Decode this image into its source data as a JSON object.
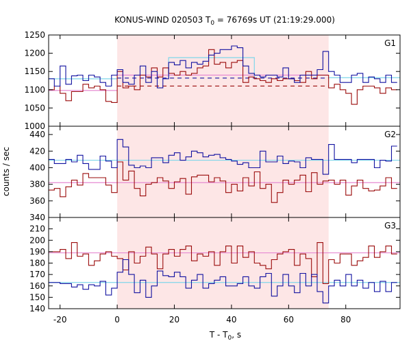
{
  "chart_data": {
    "type": "line",
    "title": "KONUS-WIND 020503 T",
    "title_sub": "0",
    "title_rest": " = 76769s UT (21:19:29.000)",
    "xlabel": "T - T",
    "xlabel_sub": "0",
    "xlabel_rest": ", s",
    "ylabel": "counts / sec",
    "xlim": [
      -24,
      99
    ],
    "x_ticks": [
      -20,
      0,
      20,
      40,
      60,
      80
    ],
    "x_tick_labels": [
      "-20",
      "0",
      "20",
      "40",
      "60",
      "80"
    ],
    "shaded_interval": [
      0,
      74
    ],
    "colors": {
      "shade": "#fde6e6",
      "blue": "#1010a0",
      "red": "#9a0a0a",
      "cyan": "#7fd6ea",
      "pink": "#e68ad2",
      "frame": "#000000"
    },
    "bin_edges": [
      -24,
      -22,
      -20,
      -18,
      -16,
      -14,
      -12,
      -10,
      -8,
      -6,
      -4,
      -2,
      0,
      2,
      4,
      6,
      8,
      10,
      12,
      14,
      16,
      18,
      20,
      22,
      24,
      26,
      28,
      30,
      32,
      34,
      36,
      38,
      40,
      42,
      44,
      46,
      48,
      50,
      52,
      54,
      56,
      58,
      60,
      62,
      64,
      66,
      68,
      70,
      72,
      74,
      76,
      78,
      80,
      82,
      84,
      86,
      88,
      90,
      92,
      94,
      96,
      98
    ],
    "panels": [
      {
        "label": "G1",
        "ylim": [
          1000,
          1250
        ],
        "y_ticks": [
          1000,
          1050,
          1100,
          1150,
          1200,
          1250
        ],
        "y_tick_labels": [
          "1000",
          "1050",
          "1100",
          "1150",
          "1200",
          "1250"
        ],
        "blue_values": [
          1130,
          1110,
          1165,
          1115,
          1138,
          1140,
          1125,
          1140,
          1135,
          1120,
          1110,
          1140,
          1155,
          1120,
          1115,
          1140,
          1165,
          1120,
          1150,
          1105,
          1130,
          1175,
          1168,
          1180,
          1160,
          1175,
          1170,
          1178,
          1195,
          1200,
          1210,
          1210,
          1220,
          1215,
          1165,
          1145,
          1140,
          1135,
          1140,
          1140,
          1135,
          1160,
          1130,
          1120,
          1140,
          1140,
          1140,
          1155,
          1205,
          1150,
          1140,
          1120,
          1120,
          1140,
          1145,
          1120,
          1135,
          1130,
          1120,
          1140,
          1120
        ],
        "red_values": [
          1100,
          1110,
          1090,
          1070,
          1095,
          1095,
          1115,
          1105,
          1110,
          1100,
          1068,
          1065,
          1150,
          1105,
          1110,
          1100,
          1140,
          1135,
          1160,
          1135,
          1160,
          1145,
          1140,
          1150,
          1140,
          1145,
          1160,
          1165,
          1210,
          1170,
          1175,
          1160,
          1175,
          1180,
          1120,
          1135,
          1130,
          1125,
          1120,
          1130,
          1125,
          1130,
          1130,
          1125,
          1120,
          1150,
          1130,
          1140,
          1140,
          1105,
          1115,
          1100,
          1090,
          1060,
          1100,
          1110,
          1110,
          1105,
          1090,
          1105,
          1100
        ],
        "blue_bg_left": 1130,
        "red_bg_left": 1098,
        "blue_bg_right": 1132,
        "red_bg_right": 1110,
        "pink_mid": 1140,
        "cyan_box": [
          18,
          48,
          1188
        ],
        "cyan_right": 1133
      },
      {
        "label": "G2",
        "ylim": [
          340,
          450
        ],
        "y_ticks": [
          340,
          360,
          380,
          400,
          420,
          440
        ],
        "y_tick_labels": [
          "340",
          "360",
          "380",
          "400",
          "420",
          "440"
        ],
        "blue_values": [
          410,
          405,
          405,
          410,
          407,
          415,
          405,
          398,
          398,
          414,
          408,
          400,
          434,
          425,
          403,
          400,
          402,
          400,
          412,
          412,
          406,
          415,
          418,
          409,
          413,
          420,
          418,
          413,
          415,
          416,
          412,
          410,
          408,
          404,
          406,
          400,
          400,
          420,
          407,
          407,
          414,
          405,
          408,
          407,
          400,
          412,
          410,
          410,
          392,
          428,
          410,
          410,
          410,
          406,
          410,
          410,
          410,
          400,
          409,
          408,
          426
        ],
        "red_values": [
          373,
          375,
          365,
          377,
          385,
          379,
          393,
          388,
          388,
          388,
          379,
          370,
          407,
          385,
          396,
          375,
          366,
          380,
          382,
          388,
          384,
          375,
          383,
          387,
          368,
          389,
          391,
          391,
          383,
          388,
          384,
          370,
          380,
          372,
          388,
          378,
          395,
          375,
          380,
          358,
          370,
          385,
          380,
          385,
          391,
          371,
          394,
          380,
          384,
          385,
          380,
          385,
          367,
          378,
          385,
          375,
          372,
          373,
          378,
          388,
          375
        ],
        "cyan_level": 409,
        "pink_level": 382
      },
      {
        "label": "G3",
        "ylim": [
          140,
          220
        ],
        "y_ticks": [
          140,
          150,
          160,
          170,
          180,
          190,
          200,
          210
        ],
        "y_tick_labels": [
          "140",
          "150",
          "160",
          "170",
          "180",
          "190",
          "200",
          "210"
        ],
        "blue_values": [
          163,
          163,
          162,
          162,
          159,
          161,
          157,
          161,
          160,
          164,
          152,
          158,
          172,
          183,
          170,
          154,
          165,
          150,
          160,
          173,
          169,
          168,
          172,
          168,
          158,
          165,
          170,
          158,
          162,
          165,
          168,
          160,
          160,
          162,
          168,
          160,
          158,
          168,
          171,
          151,
          160,
          170,
          160,
          154,
          171,
          160,
          170,
          155,
          145,
          160,
          165,
          160,
          170,
          160,
          165,
          158,
          163,
          155,
          164,
          155,
          163
        ],
        "red_values": [
          190,
          190,
          192,
          184,
          198,
          186,
          188,
          178,
          182,
          188,
          190,
          186,
          184,
          174,
          190,
          180,
          186,
          194,
          188,
          175,
          188,
          192,
          186,
          192,
          195,
          182,
          188,
          186,
          190,
          178,
          190,
          195,
          180,
          195,
          185,
          190,
          180,
          178,
          175,
          183,
          188,
          190,
          192,
          178,
          188,
          184,
          168,
          198,
          162,
          183,
          180,
          188,
          188,
          178,
          182,
          185,
          195,
          185,
          190,
          195,
          188
        ],
        "cyan_level": 163,
        "pink_level": 189
      }
    ]
  }
}
